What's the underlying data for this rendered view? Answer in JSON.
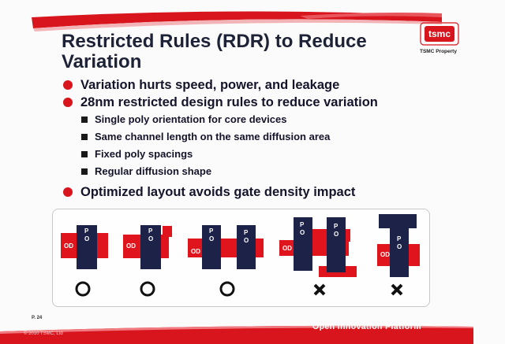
{
  "title": {
    "line1": "Restricted Rules (RDR) to Reduce",
    "line2": "Variation"
  },
  "logo": {
    "text": "tsmc",
    "caption": "TSMC Property"
  },
  "bullets": [
    {
      "text": "Variation hurts speed, power, and leakage"
    },
    {
      "text": "28nm restricted design rules to reduce variation",
      "subitems": [
        "Single poly orientation for core devices",
        "Same channel length on the same diffusion area",
        "Fixed poly spacings",
        "Regular diffusion shape"
      ]
    },
    {
      "text": "Optimized layout avoids gate density impact"
    }
  ],
  "diagram": {
    "od_label": "OD",
    "po_label_p": "P",
    "po_label_o": "O",
    "marks": [
      "ok",
      "ok",
      "ok",
      "bad",
      "bad"
    ],
    "colors": {
      "od": "#e0141c",
      "poly": "#1c2248",
      "poly_text": "#ffffff"
    }
  },
  "footer": {
    "page": "P. 24",
    "copyright": "© 2010 TSMC, Ltd",
    "brand": "Open Innovation Platform ™"
  },
  "colors": {
    "accent_red": "#d8141c",
    "title": "#1e2236"
  }
}
